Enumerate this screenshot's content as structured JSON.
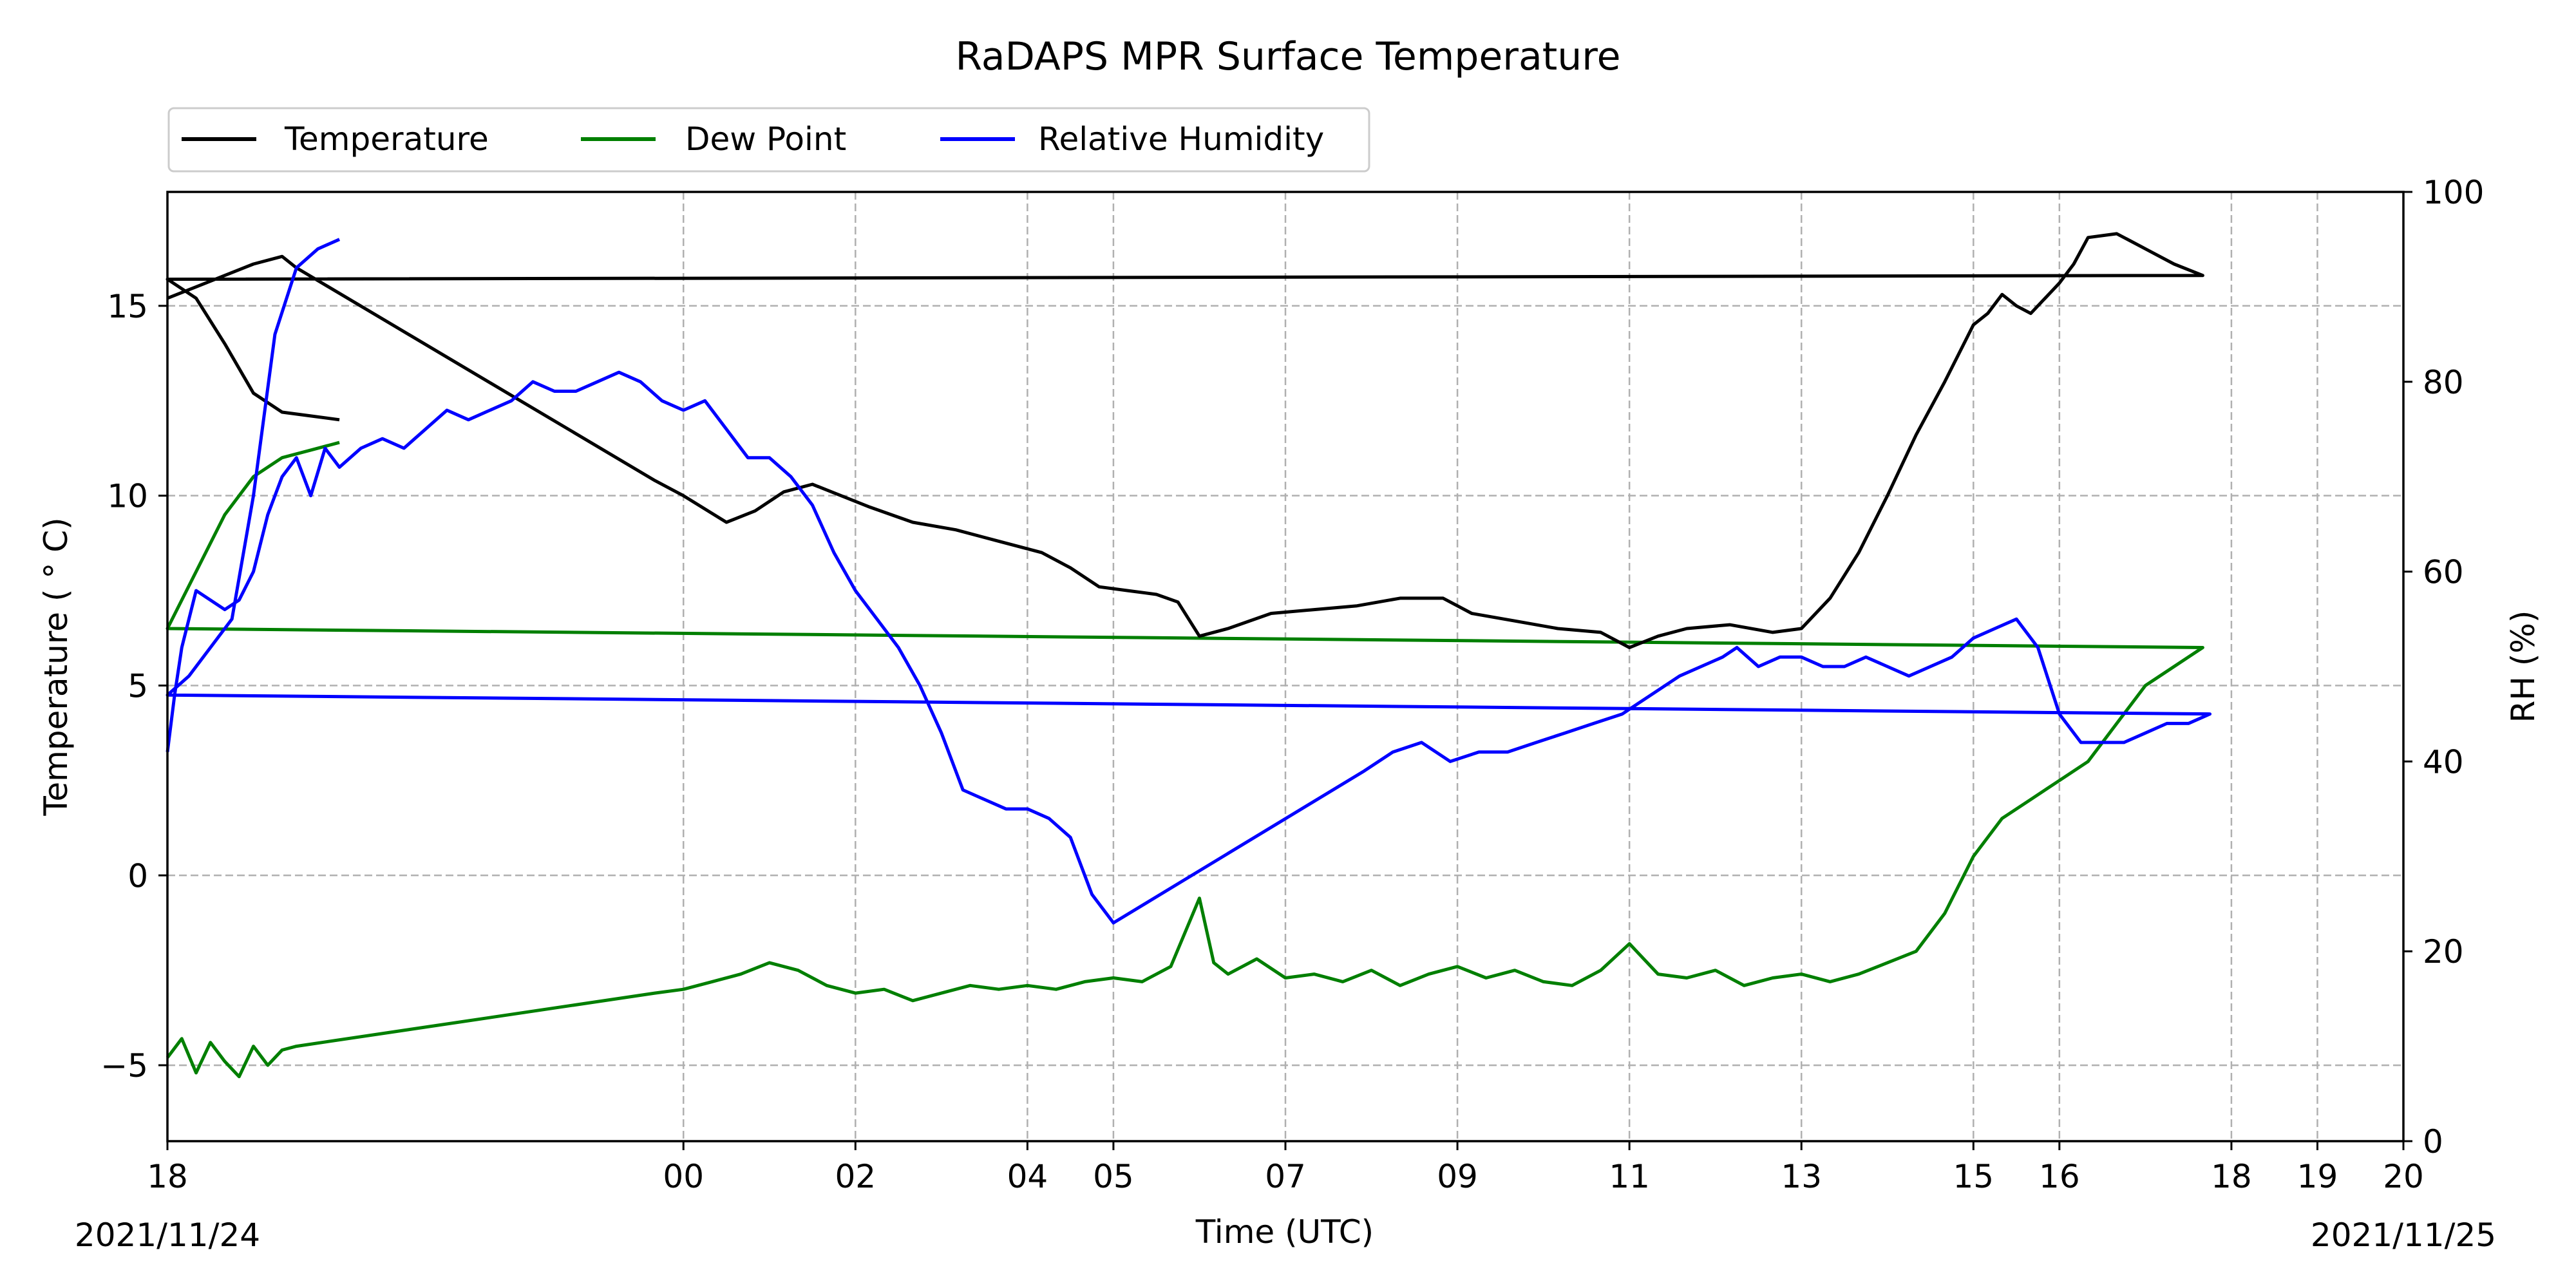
{
  "chart_data": {
    "type": "line",
    "title": "RaDAPS MPR Surface Temperature",
    "xlabel": "Time (UTC)",
    "ylabel_left": "Temperature ($^\\circ$C)",
    "ylabel_left_display": "Temperature ( ° C)",
    "ylabel_right": "RH (%)",
    "ylim_left": [
      -7,
      18
    ],
    "ylim_right": [
      0,
      100
    ],
    "yticks_left": [
      -5,
      0,
      5,
      10,
      15
    ],
    "yticks_right": [
      0,
      20,
      40,
      60,
      80,
      100
    ],
    "x_ticks": [
      {
        "label": "18",
        "value": "2021-11-24 18:00"
      },
      {
        "label": "00",
        "value": "2021-11-25 00:00"
      },
      {
        "label": "02",
        "value": "2021-11-25 02:00"
      },
      {
        "label": "04",
        "value": "2021-11-25 04:00"
      },
      {
        "label": "05",
        "value": "2021-11-25 05:00"
      },
      {
        "label": "07",
        "value": "2021-11-25 07:00"
      },
      {
        "label": "09",
        "value": "2021-11-25 09:00"
      },
      {
        "label": "11",
        "value": "2021-11-25 11:00"
      },
      {
        "label": "13",
        "value": "2021-11-25 13:00"
      },
      {
        "label": "15",
        "value": "2021-11-25 15:00"
      },
      {
        "label": "16",
        "value": "2021-11-25 16:00"
      },
      {
        "label": "18",
        "value": "2021-11-25 18:00"
      },
      {
        "label": "19",
        "value": "2021-11-25 19:00"
      },
      {
        "label": "20",
        "value": "2021-11-25 20:00"
      }
    ],
    "x_date_left": "2021/11/24",
    "x_date_right": "2021/11/25",
    "grid": true,
    "legend_position": "top-left, above plot",
    "legend": [
      "Temperature",
      "Dew Point",
      "Relative Humidity"
    ],
    "series": [
      {
        "name": "Temperature",
        "axis": "left",
        "color": "#000000",
        "x": [
          "18:00",
          "18:20",
          "18:40",
          "19:00",
          "19:20",
          "19:30",
          "23:40",
          "00:00",
          "00:30",
          "00:50",
          "01:10",
          "01:30",
          "01:50",
          "02:10",
          "02:40",
          "03:10",
          "03:40",
          "04:10",
          "04:30",
          "04:50",
          "05:10",
          "05:30",
          "05:45",
          "06:00",
          "06:20",
          "06:50",
          "07:20",
          "07:50",
          "08:20",
          "08:50",
          "09:10",
          "09:40",
          "10:10",
          "10:40",
          "11:00",
          "11:20",
          "11:40",
          "12:10",
          "12:40",
          "13:00",
          "13:20",
          "13:40",
          "14:00",
          "14:20",
          "14:40",
          "15:00",
          "15:10",
          "15:20",
          "15:30",
          "15:40",
          "15:50",
          "16:00",
          "16:10",
          "16:20",
          "16:40",
          "17:00",
          "17:20",
          "17:40",
          "18:00",
          "18:20",
          "18:40",
          "19:00",
          "19:20",
          "19:40",
          "20:00"
        ],
        "values": [
          15.2,
          15.5,
          15.8,
          16.1,
          16.3,
          16.0,
          10.4,
          10.0,
          9.3,
          9.6,
          10.1,
          10.3,
          10.0,
          9.7,
          9.3,
          9.1,
          8.8,
          8.5,
          8.1,
          7.6,
          7.5,
          7.4,
          7.2,
          6.3,
          6.5,
          6.9,
          7.0,
          7.1,
          7.3,
          7.3,
          6.9,
          6.7,
          6.5,
          6.4,
          6.0,
          6.3,
          6.5,
          6.6,
          6.4,
          6.5,
          7.3,
          8.5,
          10.0,
          11.6,
          13.0,
          14.5,
          14.8,
          15.3,
          15.0,
          14.8,
          15.2,
          15.6,
          16.1,
          16.8,
          16.9,
          16.5,
          16.1,
          15.8,
          15.7,
          15.2,
          14.0,
          12.7,
          12.2,
          12.1,
          12.0
        ]
      },
      {
        "name": "Dew Point",
        "axis": "left",
        "color": "#007f00",
        "x": [
          "18:00",
          "18:10",
          "18:20",
          "18:30",
          "18:40",
          "18:50",
          "19:00",
          "19:10",
          "19:20",
          "19:30",
          "23:40",
          "00:00",
          "00:20",
          "00:40",
          "01:00",
          "01:20",
          "01:40",
          "02:00",
          "02:20",
          "02:40",
          "03:00",
          "03:20",
          "03:40",
          "04:00",
          "04:20",
          "04:40",
          "05:00",
          "05:20",
          "05:40",
          "06:00",
          "06:10",
          "06:20",
          "06:40",
          "07:00",
          "07:20",
          "07:40",
          "08:00",
          "08:20",
          "08:40",
          "09:00",
          "09:20",
          "09:40",
          "10:00",
          "10:20",
          "10:40",
          "11:00",
          "11:20",
          "11:40",
          "12:00",
          "12:20",
          "12:40",
          "13:00",
          "13:20",
          "13:40",
          "14:00",
          "14:20",
          "14:40",
          "15:00",
          "15:20",
          "15:40",
          "16:00",
          "16:20",
          "16:40",
          "17:00",
          "17:20",
          "17:40",
          "18:00",
          "18:20",
          "18:40",
          "19:00",
          "19:20",
          "19:40",
          "20:00"
        ],
        "values": [
          -4.8,
          -4.3,
          -5.2,
          -4.4,
          -4.9,
          -5.3,
          -4.5,
          -5.0,
          -4.6,
          -4.5,
          -3.1,
          -3.0,
          -2.8,
          -2.6,
          -2.3,
          -2.5,
          -2.9,
          -3.1,
          -3.0,
          -3.3,
          -3.1,
          -2.9,
          -3.0,
          -2.9,
          -3.0,
          -2.8,
          -2.7,
          -2.8,
          -2.4,
          -0.6,
          -2.3,
          -2.6,
          -2.2,
          -2.7,
          -2.6,
          -2.8,
          -2.5,
          -2.9,
          -2.6,
          -2.4,
          -2.7,
          -2.5,
          -2.8,
          -2.9,
          -2.5,
          -1.8,
          -2.6,
          -2.7,
          -2.5,
          -2.9,
          -2.7,
          -2.6,
          -2.8,
          -2.6,
          -2.3,
          -2.0,
          -1.0,
          0.5,
          1.5,
          2.0,
          2.5,
          3.0,
          4.0,
          5.0,
          5.5,
          6.0,
          6.5,
          8.0,
          9.5,
          10.5,
          11.0,
          11.2,
          11.4
        ]
      },
      {
        "name": "Relative Humidity",
        "axis": "right",
        "color": "#0000ff",
        "x": [
          "18:00",
          "18:05",
          "18:10",
          "18:20",
          "18:30",
          "18:40",
          "18:50",
          "19:00",
          "19:10",
          "19:20",
          "19:30",
          "19:40",
          "19:50",
          "20:00",
          "20:15",
          "20:30",
          "20:45",
          "21:00",
          "21:15",
          "21:30",
          "21:45",
          "22:00",
          "22:15",
          "22:30",
          "22:45",
          "23:00",
          "23:15",
          "23:30",
          "23:45",
          "00:00",
          "00:15",
          "00:30",
          "00:45",
          "01:00",
          "01:15",
          "01:30",
          "01:45",
          "02:00",
          "02:15",
          "02:30",
          "02:45",
          "03:00",
          "03:15",
          "03:30",
          "03:45",
          "04:00",
          "04:15",
          "04:30",
          "04:45",
          "05:00",
          "07:55",
          "08:15",
          "08:35",
          "08:55",
          "09:15",
          "09:35",
          "09:55",
          "10:15",
          "10:35",
          "10:55",
          "11:15",
          "11:35",
          "11:50",
          "12:05",
          "12:15",
          "12:30",
          "12:45",
          "13:00",
          "13:15",
          "13:30",
          "13:45",
          "14:00",
          "14:15",
          "14:30",
          "14:45",
          "15:00",
          "15:15",
          "15:30",
          "15:45",
          "16:00",
          "16:15",
          "16:30",
          "16:45",
          "17:00",
          "17:15",
          "17:30",
          "17:45",
          "18:00",
          "18:15",
          "18:30",
          "18:45",
          "19:00",
          "19:15",
          "19:30",
          "19:45",
          "20:00"
        ],
        "values": [
          41,
          47,
          52,
          58,
          57,
          56,
          57,
          60,
          66,
          70,
          72,
          68,
          73,
          71,
          73,
          74,
          73,
          75,
          77,
          76,
          77,
          78,
          80,
          79,
          79,
          80,
          81,
          80,
          78,
          77,
          78,
          75,
          72,
          72,
          70,
          67,
          62,
          58,
          55,
          52,
          48,
          43,
          37,
          36,
          35,
          35,
          34,
          32,
          26,
          23,
          39,
          41,
          42,
          40,
          41,
          41,
          42,
          43,
          44,
          45,
          47,
          49,
          50,
          51,
          52,
          50,
          51,
          51,
          50,
          50,
          51,
          50,
          49,
          50,
          51,
          53,
          54,
          55,
          52,
          45,
          42,
          42,
          42,
          43,
          44,
          44,
          45,
          47,
          49,
          52,
          55,
          68,
          85,
          92,
          94,
          95
        ]
      }
    ]
  }
}
